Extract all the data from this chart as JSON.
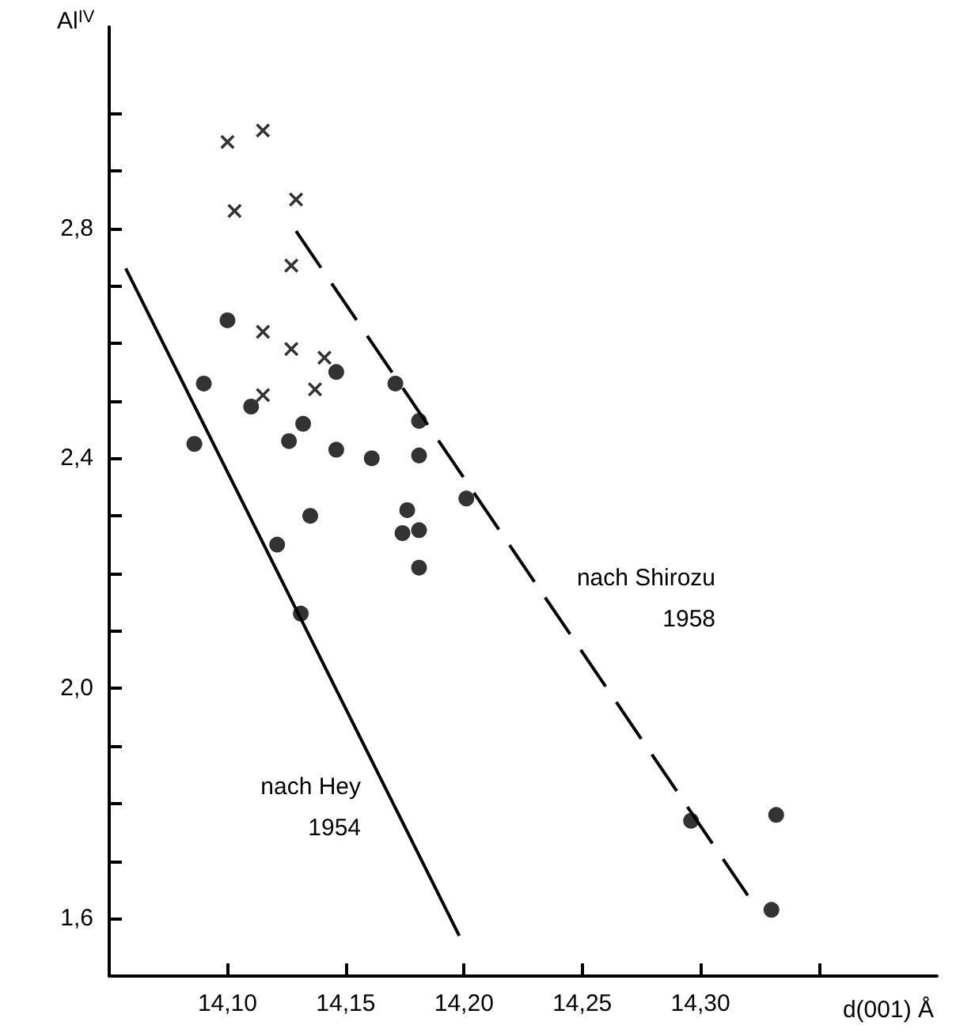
{
  "chart_data": {
    "type": "scatter",
    "xlabel": "d(001) Å",
    "ylabel": "Al$^{IV}$",
    "grid": false,
    "xlim": [
      14.05,
      14.4
    ],
    "ylim": [
      1.5,
      3.15
    ],
    "xticks": [
      {
        "value": 14.1,
        "label": "14,10"
      },
      {
        "value": 14.15,
        "label": "14,15"
      },
      {
        "value": 14.2,
        "label": "14,20"
      },
      {
        "value": 14.25,
        "label": "14,25"
      },
      {
        "value": 14.3,
        "label": "14,30"
      },
      {
        "value": 14.35,
        "label": null
      }
    ],
    "yticks": [
      {
        "value": 1.6,
        "label": "1,6"
      },
      {
        "value": 1.7,
        "label": null
      },
      {
        "value": 1.8,
        "label": null
      },
      {
        "value": 1.9,
        "label": null
      },
      {
        "value": 2.0,
        "label": "2,0"
      },
      {
        "value": 2.1,
        "label": null
      },
      {
        "value": 2.2,
        "label": null
      },
      {
        "value": 2.3,
        "label": null
      },
      {
        "value": 2.4,
        "label": "2,4"
      },
      {
        "value": 2.5,
        "label": null
      },
      {
        "value": 2.6,
        "label": null
      },
      {
        "value": 2.7,
        "label": null
      },
      {
        "value": 2.8,
        "label": "2,8"
      },
      {
        "value": 2.9,
        "label": null
      },
      {
        "value": 3.0,
        "label": null
      }
    ],
    "series": [
      {
        "marker": "cross",
        "color": "#000000",
        "x": [
          14.1,
          14.115,
          14.103,
          14.129,
          14.127,
          14.115,
          14.127,
          14.141,
          14.115,
          14.137
        ],
        "values": [
          2.95,
          2.97,
          2.83,
          2.85,
          2.735,
          2.62,
          2.59,
          2.575,
          2.51,
          2.52
        ]
      },
      {
        "marker": "circle",
        "color": "#000000",
        "x": [
          14.1,
          14.09,
          14.086,
          14.11,
          14.146,
          14.132,
          14.126,
          14.146,
          14.161,
          14.171,
          14.181,
          14.181,
          14.201,
          14.135,
          14.176,
          14.174,
          14.181,
          14.181,
          14.121,
          14.131,
          14.296,
          14.332,
          14.33
        ],
        "values": [
          2.64,
          2.53,
          2.425,
          2.49,
          2.55,
          2.46,
          2.43,
          2.415,
          2.4,
          2.53,
          2.465,
          2.405,
          2.33,
          2.3,
          2.31,
          2.27,
          2.275,
          2.21,
          2.25,
          2.13,
          1.77,
          1.78,
          1.615
        ]
      },
      {
        "type": "line",
        "marker": "none",
        "line_style": "solid",
        "color": "#000000",
        "x": [
          14.057,
          14.198
        ],
        "values": [
          2.73,
          1.57
        ]
      },
      {
        "type": "line",
        "marker": "none",
        "line_style": "dashed",
        "color": "#000000",
        "x": [
          14.129,
          14.32
        ],
        "values": [
          2.795,
          1.64
        ]
      }
    ],
    "annotations": [
      "nach Hey\n1954",
      "nach Shirozu\n1958"
    ]
  }
}
